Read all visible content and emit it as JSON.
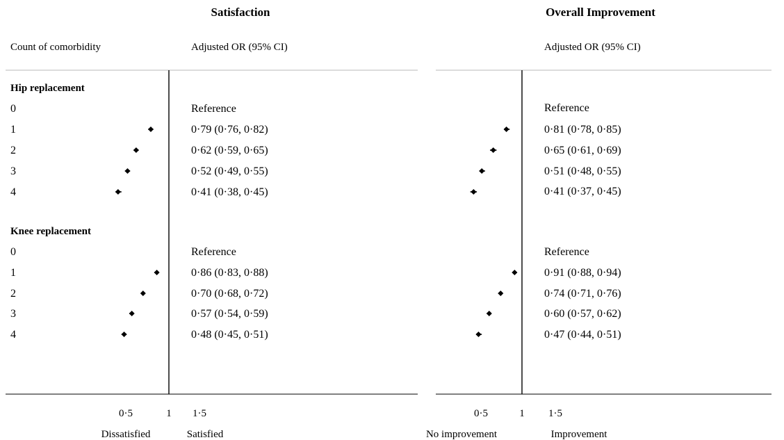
{
  "column_header_left": "Count of comorbidity",
  "chart_data": [
    {
      "type": "forest",
      "title": "Satisfaction",
      "estimate_header": "Adjusted OR (95% CI)",
      "reference_value": 1,
      "x_ticks": [
        "0·5",
        "1",
        "1·5"
      ],
      "x_tick_values": [
        0.5,
        1,
        1.5
      ],
      "xlim": [
        0,
        4
      ],
      "direction_labels": {
        "left": "Dissatisfied",
        "right": "Satisfied"
      },
      "groups": [
        {
          "name": "Hip replacement",
          "rows": [
            {
              "label": "0",
              "text": "Reference",
              "or": null,
              "lo": null,
              "hi": null
            },
            {
              "label": "1",
              "text": "0·79 (0·76, 0·82)",
              "or": 0.79,
              "lo": 0.76,
              "hi": 0.82
            },
            {
              "label": "2",
              "text": "0·62 (0·59, 0·65)",
              "or": 0.62,
              "lo": 0.59,
              "hi": 0.65
            },
            {
              "label": "3",
              "text": "0·52 (0·49, 0·55)",
              "or": 0.52,
              "lo": 0.49,
              "hi": 0.55
            },
            {
              "label": "4",
              "text": "0·41 (0·38, 0·45)",
              "or": 0.41,
              "lo": 0.38,
              "hi": 0.45
            }
          ]
        },
        {
          "name": "Knee replacement",
          "rows": [
            {
              "label": "0",
              "text": "Reference",
              "or": null,
              "lo": null,
              "hi": null
            },
            {
              "label": "1",
              "text": "0·86 (0·83, 0·88)",
              "or": 0.86,
              "lo": 0.83,
              "hi": 0.88
            },
            {
              "label": "2",
              "text": "0·70 (0·68, 0·72)",
              "or": 0.7,
              "lo": 0.68,
              "hi": 0.72
            },
            {
              "label": "3",
              "text": "0·57 (0·54, 0·59)",
              "or": 0.57,
              "lo": 0.54,
              "hi": 0.59
            },
            {
              "label": "4",
              "text": "0·48 (0·45, 0·51)",
              "or": 0.48,
              "lo": 0.45,
              "hi": 0.51
            }
          ]
        }
      ]
    },
    {
      "type": "forest",
      "title": "Overall Improvement",
      "estimate_header": "Adjusted OR (95% CI)",
      "reference_value": 1,
      "x_ticks": [
        "0·5",
        "1",
        "1·5"
      ],
      "x_tick_values": [
        0.5,
        1,
        1.5
      ],
      "xlim": [
        0,
        4
      ],
      "direction_labels": {
        "left": "No improvement",
        "right": "Improvement"
      },
      "groups": [
        {
          "name": "Hip replacement",
          "rows": [
            {
              "label": "0",
              "text": "Reference",
              "or": null,
              "lo": null,
              "hi": null
            },
            {
              "label": "1",
              "text": "0·81 (0·78, 0·85)",
              "or": 0.81,
              "lo": 0.78,
              "hi": 0.85
            },
            {
              "label": "2",
              "text": "0·65 (0·61, 0·69)",
              "or": 0.65,
              "lo": 0.61,
              "hi": 0.69
            },
            {
              "label": "3",
              "text": "0·51 (0·48, 0·55)",
              "or": 0.51,
              "lo": 0.48,
              "hi": 0.55
            },
            {
              "label": "4",
              "text": "0·41 (0·37, 0·45)",
              "or": 0.41,
              "lo": 0.37,
              "hi": 0.45
            }
          ]
        },
        {
          "name": "Knee replacement",
          "rows": [
            {
              "label": "0",
              "text": "Reference",
              "or": null,
              "lo": null,
              "hi": null
            },
            {
              "label": "1",
              "text": "0·91 (0·88, 0·94)",
              "or": 0.91,
              "lo": 0.88,
              "hi": 0.94
            },
            {
              "label": "2",
              "text": "0·74 (0·71, 0·76)",
              "or": 0.74,
              "lo": 0.71,
              "hi": 0.76
            },
            {
              "label": "3",
              "text": "0·60 (0·57, 0·62)",
              "or": 0.6,
              "lo": 0.57,
              "hi": 0.62
            },
            {
              "label": "4",
              "text": "0·47 (0·44, 0·51)",
              "or": 0.47,
              "lo": 0.44,
              "hi": 0.51
            }
          ]
        }
      ]
    }
  ]
}
